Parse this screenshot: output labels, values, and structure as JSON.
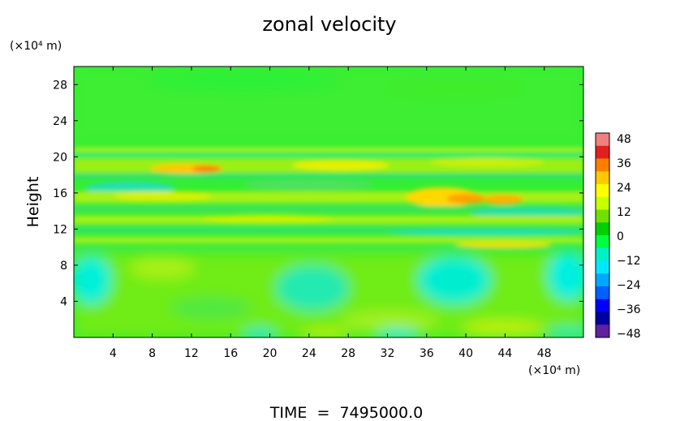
{
  "chart_data": {
    "type": "heatmap",
    "title": "zonal velocity",
    "ylabel": "Height",
    "xunit": "(×10⁴ m)",
    "yunit": "(×10⁴ m)",
    "xlim": [
      0,
      52
    ],
    "ylim": [
      0,
      30
    ],
    "xticks": [
      "4",
      "8",
      "12",
      "16",
      "20",
      "24",
      "28",
      "32",
      "36",
      "40",
      "44",
      "48"
    ],
    "yticks": [
      "4",
      "8",
      "12",
      "16",
      "20",
      "24",
      "28"
    ],
    "colorbar": {
      "range": [
        -48,
        48
      ],
      "labels": [
        "48",
        "36",
        "24",
        "12",
        "0",
        "−12",
        "−24",
        "−36",
        "−48"
      ],
      "colors": [
        "#f08080",
        "#e02020",
        "#ff7f00",
        "#ffc800",
        "#ffff00",
        "#c8ff00",
        "#70e000",
        "#00d000",
        "#00ff40",
        "#00f0c8",
        "#00e8ff",
        "#00a8ff",
        "#0060ff",
        "#0000ff",
        "#0000a0",
        "#6020a0"
      ]
    },
    "annotation": "TIME  =  7495000.0"
  }
}
